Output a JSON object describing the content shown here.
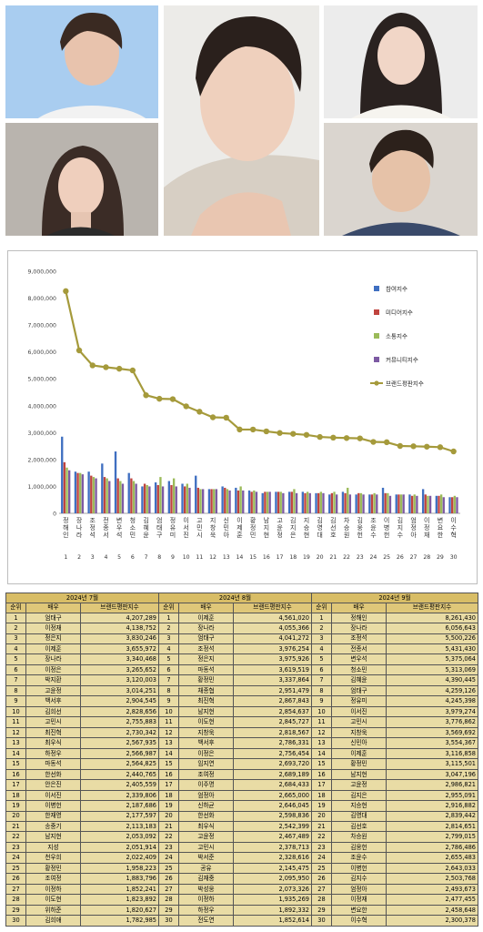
{
  "chart_data": {
    "type": "bar",
    "categories": [
      "정해인",
      "장나라",
      "조정석",
      "전종서",
      "변우석",
      "청소민",
      "김혜윤",
      "엄태구",
      "정유미",
      "이서진",
      "고민시",
      "지창욱",
      "신민아",
      "이제훈",
      "황정민",
      "남지현",
      "고윤정",
      "김지은",
      "지승현",
      "김영대",
      "김선호",
      "차승원",
      "김웅헌",
      "조윤수",
      "이병헌",
      "김지수",
      "엄정아",
      "이정재",
      "변요한",
      "이수혁"
    ],
    "rank_labels": [
      "1",
      "2",
      "3",
      "4",
      "5",
      "6",
      "7",
      "8",
      "9",
      "10",
      "11",
      "12",
      "13",
      "14",
      "15",
      "16",
      "17",
      "18",
      "19",
      "20",
      "21",
      "22",
      "23",
      "24",
      "25",
      "26",
      "27",
      "28",
      "29",
      "30"
    ],
    "ylim": [
      0,
      9000000
    ],
    "yticks": [
      "0",
      "1,000,000",
      "2,000,000",
      "3,000,000",
      "4,000,000",
      "5,000,000",
      "6,000,000",
      "7,000,000",
      "8,000,000",
      "9,000,000"
    ],
    "series": [
      {
        "name": "참여지수",
        "color": "#3f6fc1",
        "kind": "bar",
        "values": [
          2850000,
          1550000,
          1550000,
          1850000,
          2300000,
          1500000,
          1000000,
          1150000,
          1200000,
          1100000,
          1400000,
          900000,
          1000000,
          950000,
          850000,
          750000,
          800000,
          800000,
          800000,
          750000,
          700000,
          800000,
          700000,
          700000,
          950000,
          700000,
          700000,
          900000,
          650000,
          600000
        ]
      },
      {
        "name": "미디어지수",
        "color": "#c0443e",
        "kind": "bar",
        "values": [
          1900000,
          1500000,
          1400000,
          1350000,
          1300000,
          1300000,
          1100000,
          1050000,
          1050000,
          1000000,
          950000,
          900000,
          950000,
          850000,
          800000,
          800000,
          800000,
          800000,
          750000,
          750000,
          750000,
          750000,
          750000,
          700000,
          750000,
          700000,
          650000,
          700000,
          650000,
          600000
        ]
      },
      {
        "name": "소통지수",
        "color": "#9bbb59",
        "kind": "bar",
        "values": [
          1700000,
          1500000,
          1350000,
          1300000,
          1200000,
          1200000,
          1050000,
          1350000,
          1300000,
          1100000,
          900000,
          900000,
          900000,
          1000000,
          850000,
          800000,
          800000,
          900000,
          800000,
          800000,
          800000,
          950000,
          750000,
          750000,
          750000,
          700000,
          700000,
          650000,
          700000,
          650000
        ]
      },
      {
        "name": "커뮤니티지수",
        "color": "#7d5aa3",
        "kind": "bar",
        "values": [
          1600000,
          1450000,
          1300000,
          1200000,
          1100000,
          1100000,
          1000000,
          1000000,
          1000000,
          950000,
          900000,
          900000,
          850000,
          850000,
          800000,
          800000,
          750000,
          750000,
          750000,
          750000,
          700000,
          700000,
          700000,
          700000,
          650000,
          700000,
          650000,
          650000,
          600000,
          600000
        ]
      },
      {
        "name": "브랜드평판지수",
        "color": "#a59a3b",
        "kind": "line",
        "values": [
          8261430,
          6056643,
          5500226,
          5431430,
          5375064,
          5313069,
          4390445,
          4259126,
          4245398,
          3979274,
          3776862,
          3569692,
          3554367,
          3116858,
          3115501,
          3047196,
          2986821,
          2955091,
          2916882,
          2839442,
          2814651,
          2799015,
          2786486,
          2655483,
          2643033,
          2503768,
          2493673,
          2477455,
          2458648,
          2300378
        ]
      }
    ],
    "legend_position": "right"
  },
  "table": {
    "months": [
      "2024년 7월",
      "2024년 8월",
      "2024년 9월"
    ],
    "col_rank": "순위",
    "col_name": "배우",
    "col_value": "브랜드평판지수",
    "rows": [
      [
        "1",
        "엄태구",
        "4,207,289",
        "1",
        "이제훈",
        "4,561,020",
        "1",
        "정해인",
        "8,261,430"
      ],
      [
        "2",
        "이정재",
        "4,138,752",
        "2",
        "장나라",
        "4,055,366",
        "2",
        "장나라",
        "6,056,643"
      ],
      [
        "3",
        "정은지",
        "3,830,246",
        "3",
        "엄태구",
        "4,041,272",
        "3",
        "조정석",
        "5,500,226"
      ],
      [
        "4",
        "이제훈",
        "3,655,972",
        "4",
        "조정석",
        "3,976,254",
        "4",
        "전종서",
        "5,431,430"
      ],
      [
        "5",
        "장나라",
        "3,340,468",
        "5",
        "정은지",
        "3,975,926",
        "5",
        "변우석",
        "5,375,064"
      ],
      [
        "6",
        "이정은",
        "3,265,652",
        "6",
        "마동석",
        "3,619,519",
        "6",
        "청소민",
        "5,313,069"
      ],
      [
        "7",
        "박지환",
        "3,120,003",
        "7",
        "황정민",
        "3,337,864",
        "7",
        "김혜윤",
        "4,390,445"
      ],
      [
        "8",
        "고윤정",
        "3,014,251",
        "8",
        "채종협",
        "2,951,479",
        "8",
        "엄태구",
        "4,259,126"
      ],
      [
        "9",
        "백서후",
        "2,904,545",
        "9",
        "최진혁",
        "2,867,843",
        "9",
        "정유미",
        "4,245,398"
      ],
      [
        "10",
        "김희선",
        "2,828,656",
        "10",
        "남지현",
        "2,854,637",
        "10",
        "이서진",
        "3,979,274"
      ],
      [
        "11",
        "고민시",
        "2,755,883",
        "11",
        "이도현",
        "2,845,727",
        "11",
        "고민시",
        "3,776,862"
      ],
      [
        "12",
        "최진혁",
        "2,730,342",
        "12",
        "지창욱",
        "2,818,567",
        "12",
        "지창욱",
        "3,569,692"
      ],
      [
        "13",
        "최우식",
        "2,567,935",
        "13",
        "백서후",
        "2,786,331",
        "13",
        "신민아",
        "3,554,367"
      ],
      [
        "14",
        "하정우",
        "2,566,987",
        "14",
        "이정은",
        "2,756,454",
        "14",
        "이제훈",
        "3,116,858"
      ],
      [
        "15",
        "마동석",
        "2,564,825",
        "15",
        "임지연",
        "2,693,720",
        "15",
        "황정민",
        "3,115,501"
      ],
      [
        "16",
        "한선화",
        "2,440,765",
        "16",
        "조여정",
        "2,689,189",
        "16",
        "남지현",
        "3,047,196"
      ],
      [
        "17",
        "안은진",
        "2,405,559",
        "17",
        "이주명",
        "2,684,433",
        "17",
        "고윤정",
        "2,986,821"
      ],
      [
        "18",
        "이서진",
        "2,339,806",
        "18",
        "엄정아",
        "2,665,000",
        "18",
        "김지은",
        "2,955,091"
      ],
      [
        "19",
        "이병헌",
        "2,187,686",
        "19",
        "신하균",
        "2,646,045",
        "19",
        "지승현",
        "2,916,882"
      ],
      [
        "20",
        "한재영",
        "2,177,597",
        "20",
        "한선화",
        "2,598,836",
        "20",
        "김영대",
        "2,839,442"
      ],
      [
        "21",
        "송중기",
        "2,113,183",
        "21",
        "최우식",
        "2,542,399",
        "21",
        "김선호",
        "2,814,651"
      ],
      [
        "22",
        "남지현",
        "2,053,092",
        "22",
        "고윤정",
        "2,467,489",
        "22",
        "차승원",
        "2,799,015"
      ],
      [
        "23",
        "지성",
        "2,051,914",
        "23",
        "고민시",
        "2,378,713",
        "23",
        "김웅헌",
        "2,786,486"
      ],
      [
        "24",
        "천우희",
        "2,022,409",
        "24",
        "박서준",
        "2,328,616",
        "24",
        "조윤수",
        "2,655,483"
      ],
      [
        "25",
        "황정민",
        "1,958,223",
        "25",
        "공유",
        "2,145,475",
        "25",
        "이병헌",
        "2,643,033"
      ],
      [
        "26",
        "조여정",
        "1,883,796",
        "26",
        "김재중",
        "2,095,950",
        "26",
        "김지수",
        "2,503,768"
      ],
      [
        "27",
        "이정하",
        "1,852,241",
        "27",
        "박성웅",
        "2,073,326",
        "27",
        "엄정아",
        "2,493,673"
      ],
      [
        "28",
        "이도현",
        "1,823,892",
        "28",
        "이정하",
        "1,935,269",
        "28",
        "이정재",
        "2,477,455"
      ],
      [
        "29",
        "위하준",
        "1,820,627",
        "29",
        "하정우",
        "1,892,332",
        "29",
        "변요한",
        "2,458,648"
      ],
      [
        "30",
        "김희애",
        "1,782,985",
        "30",
        "전도연",
        "1,852,614",
        "30",
        "이수혁",
        "2,300,378"
      ]
    ]
  }
}
